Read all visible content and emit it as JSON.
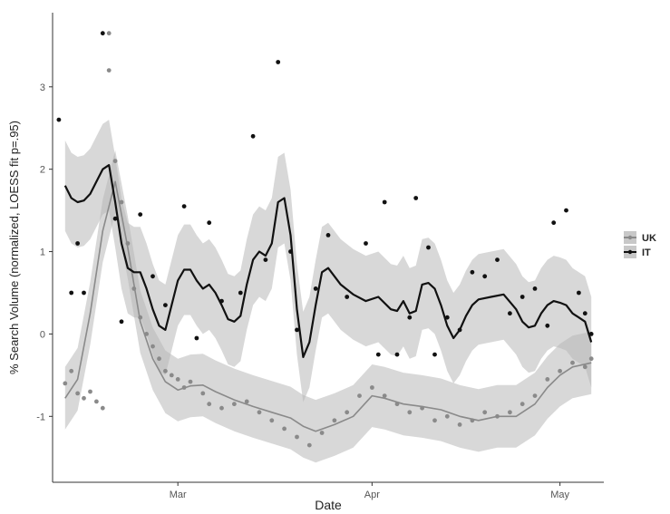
{
  "chart_data": {
    "type": "scatter",
    "title": "",
    "xlabel": "Date",
    "ylabel": "% Search Volume (normalized, LOESS fit p=.95)",
    "x_ticks": [
      "Mar",
      "Apr",
      "May"
    ],
    "x_tick_dates": [
      "2020-03-01",
      "2020-04-01",
      "2020-05-01"
    ],
    "xlim": [
      "2020-02-10",
      "2020-05-08"
    ],
    "y_ticks": [
      -1,
      0,
      1,
      2,
      3
    ],
    "ylim": [
      -1.8,
      3.9
    ],
    "grid": false,
    "legend_position": "right",
    "series": [
      {
        "name": "UK",
        "color": "#8a8a8a",
        "fit": [
          [
            "2020-02-12",
            -0.78
          ],
          [
            "2020-02-14",
            -0.55
          ],
          [
            "2020-02-16",
            0.25
          ],
          [
            "2020-02-18",
            1.25
          ],
          [
            "2020-02-20",
            1.85
          ],
          [
            "2020-02-22",
            1.05
          ],
          [
            "2020-02-24",
            0.15
          ],
          [
            "2020-02-26",
            -0.3
          ],
          [
            "2020-02-28",
            -0.58
          ],
          [
            "2020-03-01",
            -0.68
          ],
          [
            "2020-03-03",
            -0.63
          ],
          [
            "2020-03-05",
            -0.62
          ],
          [
            "2020-03-07",
            -0.7
          ],
          [
            "2020-03-10",
            -0.8
          ],
          [
            "2020-03-13",
            -0.88
          ],
          [
            "2020-03-16",
            -0.95
          ],
          [
            "2020-03-19",
            -1.02
          ],
          [
            "2020-03-21",
            -1.12
          ],
          [
            "2020-03-23",
            -1.18
          ],
          [
            "2020-03-26",
            -1.1
          ],
          [
            "2020-03-29",
            -1.0
          ],
          [
            "2020-04-01",
            -0.75
          ],
          [
            "2020-04-03",
            -0.78
          ],
          [
            "2020-04-06",
            -0.85
          ],
          [
            "2020-04-09",
            -0.88
          ],
          [
            "2020-04-12",
            -0.92
          ],
          [
            "2020-04-15",
            -1.0
          ],
          [
            "2020-04-18",
            -1.05
          ],
          [
            "2020-04-21",
            -1.0
          ],
          [
            "2020-04-24",
            -1.0
          ],
          [
            "2020-04-27",
            -0.85
          ],
          [
            "2020-04-29",
            -0.65
          ],
          [
            "2020-05-01",
            -0.5
          ],
          [
            "2020-05-03",
            -0.4
          ],
          [
            "2020-05-06",
            -0.35
          ]
        ],
        "points": [
          [
            "2020-02-12",
            -0.6
          ],
          [
            "2020-02-13",
            -0.45
          ],
          [
            "2020-02-14",
            -0.72
          ],
          [
            "2020-02-15",
            -0.78
          ],
          [
            "2020-02-16",
            -0.7
          ],
          [
            "2020-02-17",
            -0.82
          ],
          [
            "2020-02-18",
            -0.9
          ],
          [
            "2020-02-19",
            3.65
          ],
          [
            "2020-02-19",
            3.2
          ],
          [
            "2020-02-20",
            2.1
          ],
          [
            "2020-02-21",
            1.6
          ],
          [
            "2020-02-22",
            1.1
          ],
          [
            "2020-02-23",
            0.55
          ],
          [
            "2020-02-24",
            0.2
          ],
          [
            "2020-02-25",
            0.0
          ],
          [
            "2020-02-26",
            -0.15
          ],
          [
            "2020-02-27",
            -0.3
          ],
          [
            "2020-02-28",
            -0.45
          ],
          [
            "2020-02-29",
            -0.5
          ],
          [
            "2020-03-01",
            -0.55
          ],
          [
            "2020-03-02",
            -0.65
          ],
          [
            "2020-03-03",
            -0.58
          ],
          [
            "2020-03-05",
            -0.72
          ],
          [
            "2020-03-06",
            -0.85
          ],
          [
            "2020-03-08",
            -0.9
          ],
          [
            "2020-03-10",
            -0.85
          ],
          [
            "2020-03-12",
            -0.82
          ],
          [
            "2020-03-14",
            -0.95
          ],
          [
            "2020-03-16",
            -1.05
          ],
          [
            "2020-03-18",
            -1.15
          ],
          [
            "2020-03-20",
            -1.25
          ],
          [
            "2020-03-22",
            -1.35
          ],
          [
            "2020-03-24",
            -1.2
          ],
          [
            "2020-03-26",
            -1.05
          ],
          [
            "2020-03-28",
            -0.95
          ],
          [
            "2020-03-30",
            -0.75
          ],
          [
            "2020-04-01",
            -0.65
          ],
          [
            "2020-04-03",
            -0.75
          ],
          [
            "2020-04-05",
            -0.85
          ],
          [
            "2020-04-07",
            -0.95
          ],
          [
            "2020-04-09",
            -0.9
          ],
          [
            "2020-04-11",
            -1.05
          ],
          [
            "2020-04-13",
            -1.0
          ],
          [
            "2020-04-15",
            -1.1
          ],
          [
            "2020-04-17",
            -1.05
          ],
          [
            "2020-04-19",
            -0.95
          ],
          [
            "2020-04-21",
            -1.0
          ],
          [
            "2020-04-23",
            -0.95
          ],
          [
            "2020-04-25",
            -0.85
          ],
          [
            "2020-04-27",
            -0.75
          ],
          [
            "2020-04-29",
            -0.55
          ],
          [
            "2020-05-01",
            -0.45
          ],
          [
            "2020-05-03",
            -0.35
          ],
          [
            "2020-05-05",
            -0.4
          ],
          [
            "2020-05-06",
            -0.3
          ]
        ]
      },
      {
        "name": "IT",
        "color": "#111111",
        "fit": [
          [
            "2020-02-12",
            1.8
          ],
          [
            "2020-02-13",
            1.65
          ],
          [
            "2020-02-14",
            1.6
          ],
          [
            "2020-02-15",
            1.62
          ],
          [
            "2020-02-16",
            1.7
          ],
          [
            "2020-02-17",
            1.85
          ],
          [
            "2020-02-18",
            2.0
          ],
          [
            "2020-02-19",
            2.05
          ],
          [
            "2020-02-20",
            1.6
          ],
          [
            "2020-02-21",
            1.1
          ],
          [
            "2020-02-22",
            0.8
          ],
          [
            "2020-02-23",
            0.75
          ],
          [
            "2020-02-24",
            0.75
          ],
          [
            "2020-02-25",
            0.55
          ],
          [
            "2020-02-26",
            0.3
          ],
          [
            "2020-02-27",
            0.1
          ],
          [
            "2020-02-28",
            0.05
          ],
          [
            "2020-02-29",
            0.35
          ],
          [
            "2020-03-01",
            0.65
          ],
          [
            "2020-03-02",
            0.78
          ],
          [
            "2020-03-03",
            0.78
          ],
          [
            "2020-03-04",
            0.65
          ],
          [
            "2020-03-05",
            0.55
          ],
          [
            "2020-03-06",
            0.6
          ],
          [
            "2020-03-07",
            0.5
          ],
          [
            "2020-03-08",
            0.35
          ],
          [
            "2020-03-09",
            0.18
          ],
          [
            "2020-03-10",
            0.15
          ],
          [
            "2020-03-11",
            0.22
          ],
          [
            "2020-03-12",
            0.6
          ],
          [
            "2020-03-13",
            0.9
          ],
          [
            "2020-03-14",
            1.0
          ],
          [
            "2020-03-15",
            0.95
          ],
          [
            "2020-03-16",
            1.1
          ],
          [
            "2020-03-17",
            1.6
          ],
          [
            "2020-03-18",
            1.65
          ],
          [
            "2020-03-19",
            1.2
          ],
          [
            "2020-03-20",
            0.3
          ],
          [
            "2020-03-21",
            -0.28
          ],
          [
            "2020-03-22",
            -0.1
          ],
          [
            "2020-03-23",
            0.35
          ],
          [
            "2020-03-24",
            0.75
          ],
          [
            "2020-03-25",
            0.8
          ],
          [
            "2020-03-26",
            0.7
          ],
          [
            "2020-03-27",
            0.6
          ],
          [
            "2020-03-29",
            0.48
          ],
          [
            "2020-03-31",
            0.4
          ],
          [
            "2020-04-02",
            0.45
          ],
          [
            "2020-04-04",
            0.3
          ],
          [
            "2020-04-05",
            0.28
          ],
          [
            "2020-04-06",
            0.4
          ],
          [
            "2020-04-07",
            0.25
          ],
          [
            "2020-04-08",
            0.28
          ],
          [
            "2020-04-09",
            0.6
          ],
          [
            "2020-04-10",
            0.62
          ],
          [
            "2020-04-11",
            0.55
          ],
          [
            "2020-04-12",
            0.35
          ],
          [
            "2020-04-13",
            0.1
          ],
          [
            "2020-04-14",
            -0.05
          ],
          [
            "2020-04-15",
            0.05
          ],
          [
            "2020-04-16",
            0.22
          ],
          [
            "2020-04-17",
            0.35
          ],
          [
            "2020-04-18",
            0.42
          ],
          [
            "2020-04-20",
            0.45
          ],
          [
            "2020-04-22",
            0.48
          ],
          [
            "2020-04-24",
            0.3
          ],
          [
            "2020-04-25",
            0.15
          ],
          [
            "2020-04-26",
            0.08
          ],
          [
            "2020-04-27",
            0.1
          ],
          [
            "2020-04-28",
            0.25
          ],
          [
            "2020-04-29",
            0.35
          ],
          [
            "2020-04-30",
            0.4
          ],
          [
            "2020-05-01",
            0.38
          ],
          [
            "2020-05-02",
            0.35
          ],
          [
            "2020-05-03",
            0.25
          ],
          [
            "2020-05-04",
            0.2
          ],
          [
            "2020-05-05",
            0.15
          ],
          [
            "2020-05-06",
            -0.1
          ]
        ],
        "points": [
          [
            "2020-02-11",
            2.6
          ],
          [
            "2020-02-13",
            0.5
          ],
          [
            "2020-02-14",
            1.1
          ],
          [
            "2020-02-15",
            0.5
          ],
          [
            "2020-02-18",
            3.65
          ],
          [
            "2020-02-20",
            1.4
          ],
          [
            "2020-02-21",
            0.15
          ],
          [
            "2020-02-24",
            1.45
          ],
          [
            "2020-02-26",
            0.7
          ],
          [
            "2020-02-28",
            0.35
          ],
          [
            "2020-03-02",
            1.55
          ],
          [
            "2020-03-04",
            -0.05
          ],
          [
            "2020-03-06",
            1.35
          ],
          [
            "2020-03-08",
            0.4
          ],
          [
            "2020-03-11",
            0.5
          ],
          [
            "2020-03-13",
            2.4
          ],
          [
            "2020-03-15",
            0.9
          ],
          [
            "2020-03-17",
            3.3
          ],
          [
            "2020-03-19",
            1.0
          ],
          [
            "2020-03-20",
            0.05
          ],
          [
            "2020-03-23",
            0.55
          ],
          [
            "2020-03-25",
            1.2
          ],
          [
            "2020-03-28",
            0.45
          ],
          [
            "2020-03-31",
            1.1
          ],
          [
            "2020-04-02",
            -0.25
          ],
          [
            "2020-04-03",
            1.6
          ],
          [
            "2020-04-05",
            -0.25
          ],
          [
            "2020-04-07",
            0.2
          ],
          [
            "2020-04-08",
            1.65
          ],
          [
            "2020-04-10",
            1.05
          ],
          [
            "2020-04-11",
            -0.25
          ],
          [
            "2020-04-13",
            0.2
          ],
          [
            "2020-04-15",
            0.05
          ],
          [
            "2020-04-17",
            0.75
          ],
          [
            "2020-04-19",
            0.7
          ],
          [
            "2020-04-21",
            0.9
          ],
          [
            "2020-04-23",
            0.25
          ],
          [
            "2020-04-25",
            0.45
          ],
          [
            "2020-04-27",
            0.55
          ],
          [
            "2020-04-29",
            0.1
          ],
          [
            "2020-04-30",
            1.35
          ],
          [
            "2020-05-02",
            1.5
          ],
          [
            "2020-05-04",
            0.5
          ],
          [
            "2020-05-05",
            0.25
          ],
          [
            "2020-05-06",
            0.0
          ]
        ]
      }
    ]
  }
}
